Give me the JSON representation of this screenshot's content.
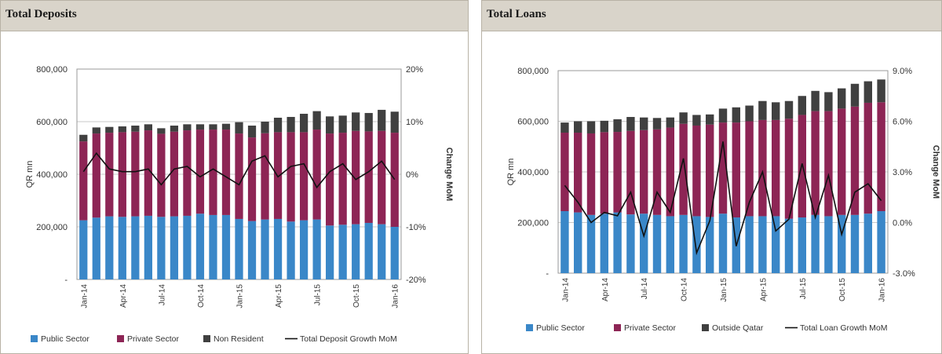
{
  "charts": [
    {
      "panel_title": "Total Deposits",
      "chart_data": {
        "type": "bar",
        "stacked": true,
        "title": "Total Deposits",
        "ylabel": "QR mn",
        "y2label": "Change MoM",
        "ylim": [
          0,
          800000
        ],
        "y_ticks": [
          0,
          200000,
          400000,
          600000,
          800000
        ],
        "y_tick_labels": [
          "-",
          "200,000",
          "400,000",
          "600,000",
          "800,000"
        ],
        "y2lim": [
          -20,
          20
        ],
        "y2_ticks": [
          -20,
          -10,
          0,
          10,
          20
        ],
        "y2_tick_labels": [
          "-20%",
          "-10%",
          "0%",
          "10%",
          "20%"
        ],
        "categories": [
          "Jan-14",
          "Feb-14",
          "Mar-14",
          "Apr-14",
          "May-14",
          "Jun-14",
          "Jul-14",
          "Aug-14",
          "Sep-14",
          "Oct-14",
          "Nov-14",
          "Dec-14",
          "Jan-15",
          "Feb-15",
          "Mar-15",
          "Apr-15",
          "May-15",
          "Jun-15",
          "Jul-15",
          "Aug-15",
          "Sep-15",
          "Oct-15",
          "Nov-15",
          "Dec-15",
          "Jan-16"
        ],
        "x_tick_labels": [
          "Jan-14",
          "",
          "",
          "Apr-14",
          "",
          "",
          "Jul-14",
          "",
          "",
          "Oct-14",
          "",
          "",
          "Jan-15",
          "",
          "",
          "Apr-15",
          "",
          "",
          "Jul-15",
          "",
          "",
          "Oct-15",
          "",
          "",
          "Jan-16"
        ],
        "series": [
          {
            "name": "Public Sector",
            "kind": "bar",
            "color": "#3a87c8",
            "values": [
              225000,
              235000,
              240000,
              238000,
              240000,
              242000,
              238000,
              240000,
              242000,
              250000,
              245000,
              245000,
              230000,
              222000,
              228000,
              230000,
              220000,
              225000,
              228000,
              205000,
              208000,
              210000,
              215000,
              210000,
              200000
            ]
          },
          {
            "name": "Private Sector",
            "kind": "bar",
            "color": "#8d2555",
            "values": [
              300000,
              320000,
              318000,
              322000,
              322000,
              325000,
              316000,
              322000,
              325000,
              320000,
              325000,
              325000,
              325000,
              318000,
              328000,
              330000,
              340000,
              335000,
              342000,
              350000,
              350000,
              355000,
              348000,
              355000,
              358000
            ]
          },
          {
            "name": "Non Resident",
            "kind": "bar",
            "color": "#404040",
            "values": [
              25000,
              23000,
              22000,
              22000,
              23000,
              23000,
              21000,
              23000,
              23000,
              20000,
              20000,
              22000,
              43000,
              45000,
              44000,
              55000,
              58000,
              70000,
              70000,
              65000,
              65000,
              70000,
              70000,
              80000,
              80000
            ]
          },
          {
            "name": "Total Deposit Growth MoM",
            "kind": "line",
            "color": "#111111",
            "values": [
              0.5,
              4,
              1,
              0.5,
              0.5,
              1,
              -2,
              1,
              1.5,
              -0.5,
              1,
              -0.5,
              -2,
              2.5,
              3.5,
              -0.5,
              1.5,
              2,
              -2.5,
              0.5,
              2,
              -1,
              0.5,
              2.5,
              -1
            ]
          }
        ],
        "legend": [
          "Public Sector",
          "Private Sector",
          "Non Resident",
          "Total Deposit Growth MoM"
        ],
        "legend_position": "bottom"
      }
    },
    {
      "panel_title": "Total Loans",
      "chart_data": {
        "type": "bar",
        "stacked": true,
        "title": "Total Loans",
        "ylabel": "QR mn",
        "y2label": "Change MoM",
        "ylim": [
          0,
          800000
        ],
        "y_ticks": [
          0,
          200000,
          400000,
          600000,
          800000
        ],
        "y_tick_labels": [
          "-",
          "200,000",
          "400,000",
          "600,000",
          "800,000"
        ],
        "y2lim": [
          -3,
          9
        ],
        "y2_ticks": [
          -3,
          0,
          3,
          6,
          9
        ],
        "y2_tick_labels": [
          "-3.0%",
          "0.0%",
          "3.0%",
          "6.0%",
          "9.0%"
        ],
        "categories": [
          "Jan-14",
          "Feb-14",
          "Mar-14",
          "Apr-14",
          "May-14",
          "Jun-14",
          "Jul-14",
          "Aug-14",
          "Sep-14",
          "Oct-14",
          "Nov-14",
          "Dec-14",
          "Jan-15",
          "Feb-15",
          "Mar-15",
          "Apr-15",
          "May-15",
          "Jun-15",
          "Jul-15",
          "Aug-15",
          "Sep-15",
          "Oct-15",
          "Nov-15",
          "Dec-15",
          "Jan-16"
        ],
        "x_tick_labels": [
          "Jan-14",
          "",
          "",
          "Apr-14",
          "",
          "",
          "Jul-14",
          "",
          "",
          "Oct-14",
          "",
          "",
          "Jan-15",
          "",
          "",
          "Apr-15",
          "",
          "",
          "Jul-15",
          "",
          "",
          "Oct-15",
          "",
          "",
          "Jan-16"
        ],
        "series": [
          {
            "name": "Public Sector",
            "kind": "bar",
            "color": "#3a87c8",
            "values": [
              245000,
              240000,
              230000,
              235000,
              240000,
              232000,
              235000,
              230000,
              225000,
              230000,
              225000,
              222000,
              235000,
              220000,
              225000,
              225000,
              225000,
              215000,
              220000,
              230000,
              225000,
              230000,
              230000,
              235000,
              245000
            ]
          },
          {
            "name": "Private Sector",
            "kind": "bar",
            "color": "#8d2555",
            "values": [
              310000,
              315000,
              322000,
              322000,
              318000,
              330000,
              330000,
              338000,
              350000,
              360000,
              358000,
              365000,
              360000,
              375000,
              375000,
              380000,
              380000,
              395000,
              405000,
              410000,
              415000,
              420000,
              428000,
              438000,
              430000
            ]
          },
          {
            "name": "Outside Qatar",
            "kind": "bar",
            "color": "#404040",
            "values": [
              40000,
              45000,
              48000,
              45000,
              50000,
              55000,
              50000,
              45000,
              40000,
              45000,
              42000,
              40000,
              55000,
              60000,
              62000,
              75000,
              70000,
              70000,
              75000,
              80000,
              75000,
              80000,
              90000,
              85000,
              90000
            ]
          },
          {
            "name": "Total Loan Growth MoM",
            "kind": "line",
            "color": "#111111",
            "values": [
              2.2,
              1.2,
              0,
              0.6,
              0.4,
              1.8,
              -0.8,
              1.8,
              0.6,
              3.8,
              -1.8,
              0.1,
              4.8,
              -1.4,
              1.2,
              3,
              -0.5,
              0.2,
              3.5,
              0.3,
              2.8,
              -0.7,
              1.8,
              2.3,
              1.3
            ]
          }
        ],
        "legend": [
          "Public Sector",
          "Private Sector",
          "Outside Qatar",
          "Total Loan Growth MoM"
        ],
        "legend_position": "bottom"
      }
    }
  ]
}
